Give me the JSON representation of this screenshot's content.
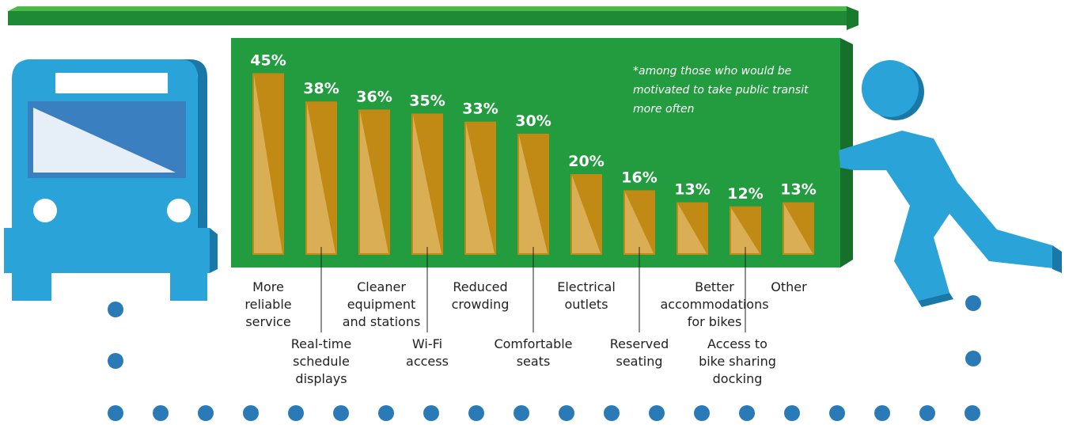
{
  "chart_data": {
    "type": "bar",
    "note": "*among those who would be motivated to take public transit more often",
    "categories": [
      [
        "More",
        "reliable",
        "service"
      ],
      [
        "Real-time",
        "schedule",
        "displays"
      ],
      [
        "Cleaner",
        "equipment",
        "and stations"
      ],
      [
        "Wi-Fi",
        "access"
      ],
      [
        "Reduced",
        "crowding"
      ],
      [
        "Comfortable",
        "seats"
      ],
      [
        "Electrical",
        "outlets"
      ],
      [
        "Reserved",
        "seating"
      ],
      [
        "Better",
        "accommodations",
        "for bikes"
      ],
      [
        "Access to",
        "bike sharing",
        "docking"
      ],
      [
        "Other"
      ]
    ],
    "values": [
      45,
      38,
      36,
      35,
      33,
      30,
      20,
      16,
      13,
      12,
      13
    ],
    "value_labels": [
      "45%",
      "38%",
      "36%",
      "35%",
      "33%",
      "30%",
      "20%",
      "16%",
      "13%",
      "12%",
      "13%"
    ],
    "color": "#c08a14"
  }
}
